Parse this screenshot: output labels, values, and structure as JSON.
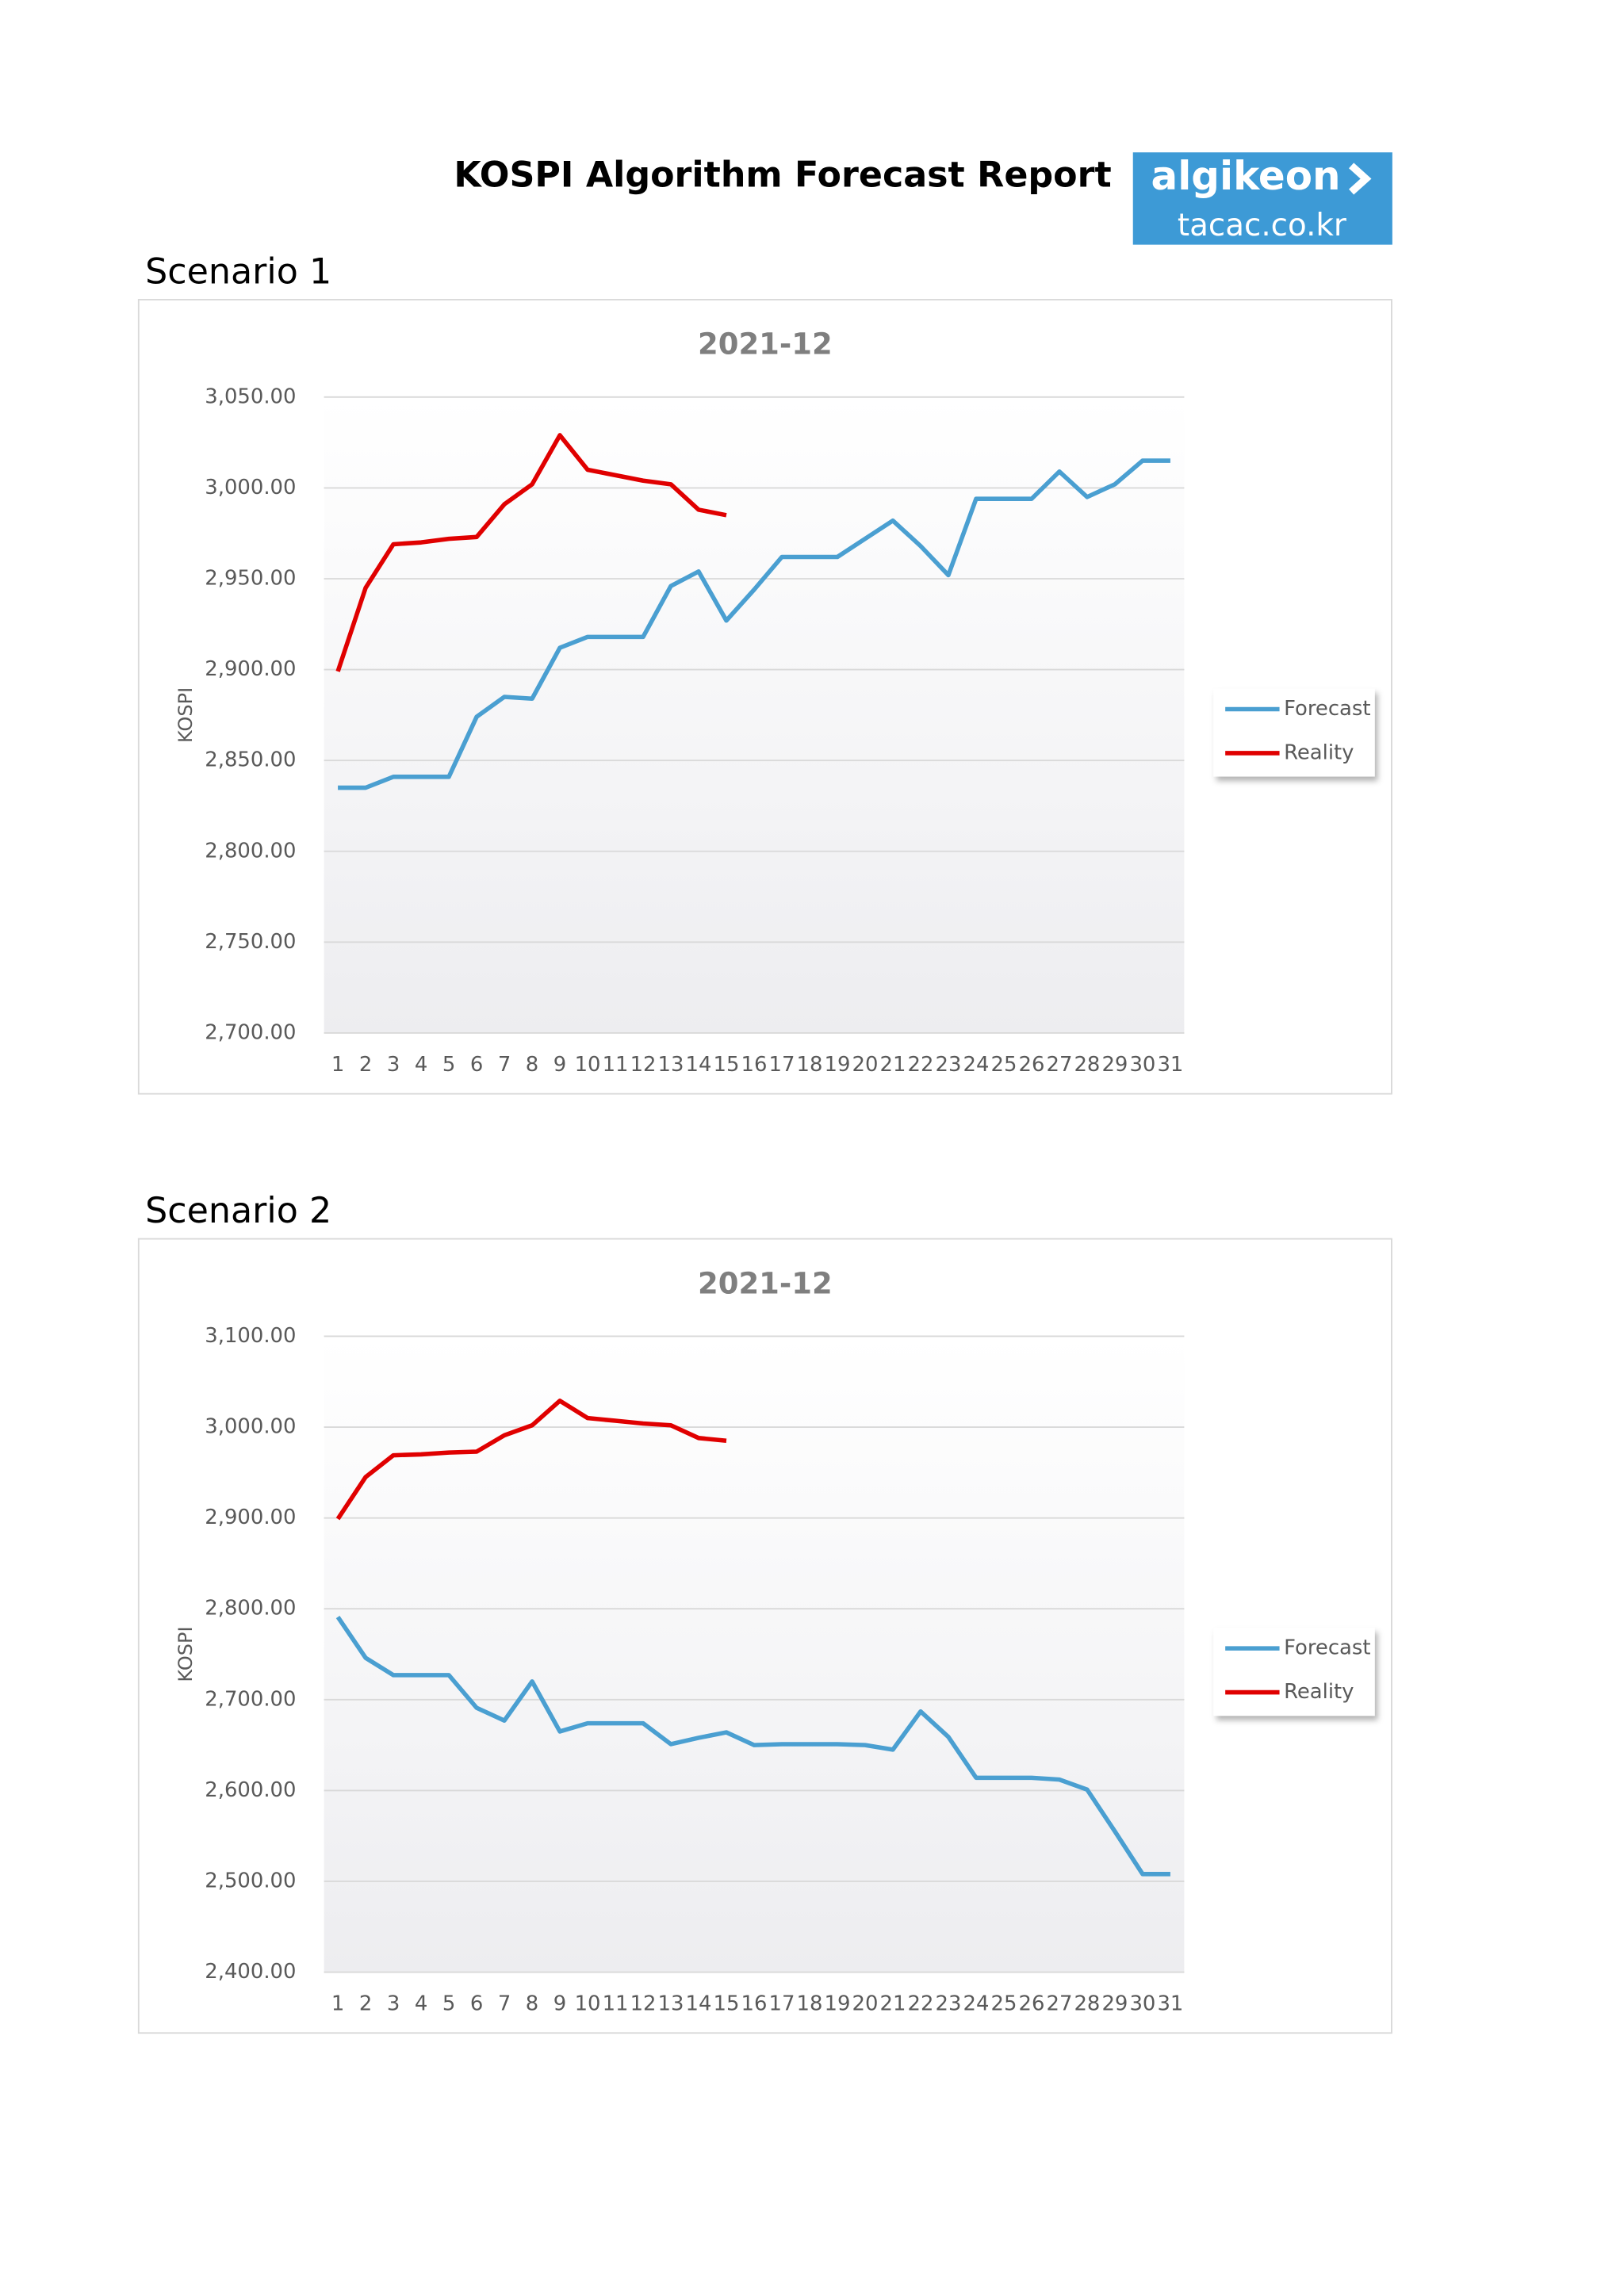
{
  "header": {
    "title": "KOSPI Algorithm Forecast Report",
    "logo": {
      "brand": "algikeon",
      "site": "tacac.co.kr"
    }
  },
  "chart_data": [
    {
      "type": "line",
      "heading": "Scenario 1",
      "title": "2021-12",
      "ylabel": "KOSPI",
      "categories": [
        "1",
        "2",
        "3",
        "4",
        "5",
        "6",
        "7",
        "8",
        "9",
        "10",
        "11",
        "12",
        "13",
        "14",
        "15",
        "16",
        "17",
        "18",
        "19",
        "20",
        "21",
        "22",
        "23",
        "24",
        "25",
        "26",
        "27",
        "28",
        "29",
        "30",
        "31"
      ],
      "series": [
        {
          "name": "Forecast",
          "color": "#4a9fd1",
          "values": [
            2835,
            2835,
            2841,
            2841,
            2841,
            2874,
            2885,
            2884,
            2912,
            2918,
            2918,
            2918,
            2946,
            2954,
            2927,
            2944,
            2962,
            2962,
            2962,
            2972,
            2982,
            2968,
            2952,
            2994,
            2994,
            2994,
            3009,
            2995,
            3002,
            3015,
            3015
          ]
        },
        {
          "name": "Reality",
          "color": "#e00000",
          "values": [
            2899,
            2945,
            2969,
            2970,
            2972,
            2973,
            2991,
            3002,
            3029,
            3010,
            3007,
            3004,
            3002,
            2988,
            2985,
            null,
            null,
            null,
            null,
            null,
            null,
            null,
            null,
            null,
            null,
            null,
            null,
            null,
            null,
            null,
            null
          ]
        }
      ],
      "ylim": [
        2700,
        3050
      ],
      "yticks": [
        {
          "value": 2700,
          "label": "2,700.00"
        },
        {
          "value": 2750,
          "label": "2,750.00"
        },
        {
          "value": 2800,
          "label": "2,800.00"
        },
        {
          "value": 2850,
          "label": "2,850.00"
        },
        {
          "value": 2900,
          "label": "2,900.00"
        },
        {
          "value": 2950,
          "label": "2,950.00"
        },
        {
          "value": 3000,
          "label": "3,000.00"
        },
        {
          "value": 3050,
          "label": "3,050.00"
        }
      ],
      "grid": true,
      "legend": "right"
    },
    {
      "type": "line",
      "heading": "Scenario 2",
      "title": "2021-12",
      "ylabel": "KOSPI",
      "categories": [
        "1",
        "2",
        "3",
        "4",
        "5",
        "6",
        "7",
        "8",
        "9",
        "10",
        "11",
        "12",
        "13",
        "14",
        "15",
        "16",
        "17",
        "18",
        "19",
        "20",
        "21",
        "22",
        "23",
        "24",
        "25",
        "26",
        "27",
        "28",
        "29",
        "30",
        "31"
      ],
      "series": [
        {
          "name": "Forecast",
          "color": "#4a9fd1",
          "values": [
            2791,
            2746,
            2727,
            2727,
            2727,
            2691,
            2677,
            2720,
            2665,
            2674,
            2674,
            2674,
            2651,
            2658,
            2664,
            2650,
            2651,
            2651,
            2651,
            2650,
            2645,
            2687,
            2659,
            2614,
            2614,
            2614,
            2612,
            2601,
            2555,
            2508,
            2508
          ]
        },
        {
          "name": "Reality",
          "color": "#e00000",
          "values": [
            2899,
            2945,
            2969,
            2970,
            2972,
            2973,
            2991,
            3002,
            3029,
            3010,
            3007,
            3004,
            3002,
            2988,
            2985,
            null,
            null,
            null,
            null,
            null,
            null,
            null,
            null,
            null,
            null,
            null,
            null,
            null,
            null,
            null,
            null
          ]
        }
      ],
      "ylim": [
        2400,
        3100
      ],
      "yticks": [
        {
          "value": 2400,
          "label": "2,400.00"
        },
        {
          "value": 2500,
          "label": "2,500.00"
        },
        {
          "value": 2600,
          "label": "2,600.00"
        },
        {
          "value": 2700,
          "label": "2,700.00"
        },
        {
          "value": 2800,
          "label": "2,800.00"
        },
        {
          "value": 2900,
          "label": "2,900.00"
        },
        {
          "value": 3000,
          "label": "3,000.00"
        },
        {
          "value": 3100,
          "label": "3,100.00"
        }
      ],
      "grid": true,
      "legend": "right"
    }
  ]
}
